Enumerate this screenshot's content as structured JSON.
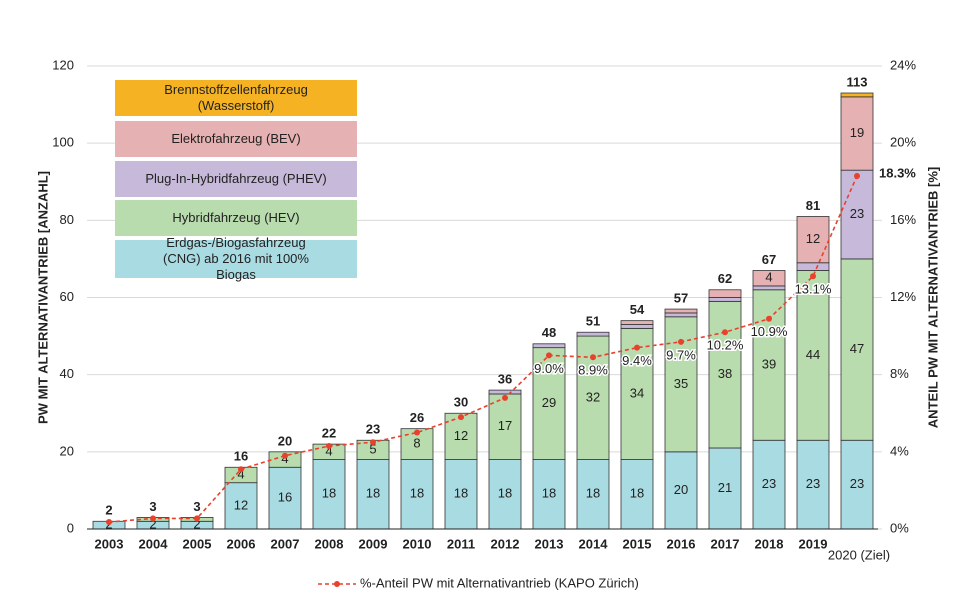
{
  "chart_data": {
    "type": "bar",
    "stacked": true,
    "categories": [
      "2003",
      "2004",
      "2005",
      "2006",
      "2007",
      "2008",
      "2009",
      "2010",
      "2011",
      "2012",
      "2013",
      "2014",
      "2015",
      "2016",
      "2017",
      "2018",
      "2019",
      "2020 (Ziel)"
    ],
    "series": [
      {
        "name": "Erdgas-/Biogasfahrzeug (CNG) ab 2016 mit 100% Biogas",
        "color": "#a9dbe3",
        "values": [
          2,
          2,
          2,
          12,
          16,
          18,
          18,
          18,
          18,
          18,
          18,
          18,
          18,
          20,
          21,
          23,
          23,
          23
        ]
      },
      {
        "name": "Hybridfahrzeug (HEV)",
        "color": "#b9dcae",
        "values": [
          0,
          1,
          1,
          4,
          4,
          4,
          5,
          8,
          12,
          17,
          29,
          32,
          34,
          35,
          38,
          39,
          44,
          47
        ]
      },
      {
        "name": "Plug-In-Hybridfahrzeug (PHEV)",
        "color": "#c7b9da",
        "values": [
          0,
          0,
          0,
          0,
          0,
          0,
          0,
          0,
          0,
          1,
          1,
          1,
          1,
          1,
          1,
          1,
          2,
          23
        ]
      },
      {
        "name": "Elektrofahrzeug (BEV)",
        "color": "#e6b1b2",
        "values": [
          0,
          0,
          0,
          0,
          0,
          0,
          0,
          0,
          0,
          0,
          0,
          0,
          1,
          1,
          2,
          4,
          12,
          19
        ]
      },
      {
        "name": "Brennstoffzellenfahrzeug (Wasserstoff)",
        "color": "#f5b324",
        "values": [
          0,
          0,
          0,
          0,
          0,
          0,
          0,
          0,
          0,
          0,
          0,
          0,
          0,
          0,
          0,
          0,
          0,
          1
        ]
      },
      {
        "name": "%-Anteil PW mit Alternativantrieb (KAPO Zürich)",
        "type": "line",
        "axis": "y2",
        "color": "#e8412c",
        "values": [
          0.36,
          0.55,
          0.55,
          3.1,
          3.8,
          4.3,
          4.5,
          5.0,
          5.8,
          6.8,
          9.0,
          8.9,
          9.4,
          9.7,
          10.2,
          10.9,
          13.1,
          18.3
        ],
        "value_labels": [
          null,
          null,
          null,
          null,
          null,
          null,
          null,
          null,
          null,
          null,
          "9.0%",
          "8.9%",
          "9.4%",
          "9.7%",
          "10.2%",
          "10.9%",
          "13.1%",
          "18.3%"
        ]
      }
    ],
    "totals": [
      2,
      3,
      3,
      16,
      20,
      22,
      23,
      26,
      30,
      36,
      48,
      51,
      54,
      57,
      62,
      67,
      81,
      113
    ],
    "ylabel": "PW MIT ALTERNATIVANTRIEB [ANZAHL]",
    "y2label": "ANTEIL PW MIT ALTERNATIVANTRIEB [%]",
    "ylim": [
      0,
      120
    ],
    "yticks": [
      0,
      20,
      40,
      60,
      80,
      100,
      120
    ],
    "y2lim": [
      0,
      24
    ],
    "y2ticks": [
      {
        "value": 0,
        "label": "0%"
      },
      {
        "value": 4,
        "label": "4%"
      },
      {
        "value": 8,
        "label": "8%"
      },
      {
        "value": 12,
        "label": "12%"
      },
      {
        "value": 16,
        "label": "16%"
      },
      {
        "value": 20,
        "label": "20%"
      },
      {
        "value": 24,
        "label": "24%"
      }
    ],
    "grid": true,
    "legend": "top-left"
  }
}
